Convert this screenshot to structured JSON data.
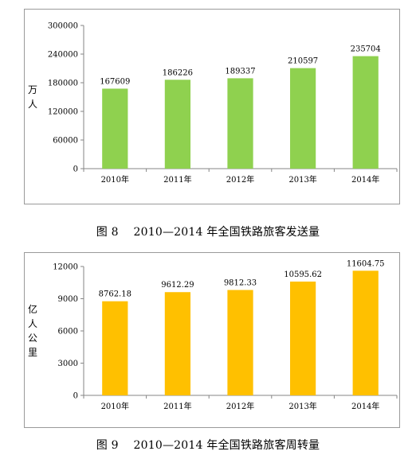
{
  "chart_data": [
    {
      "type": "bar",
      "categories": [
        "2010年",
        "2011年",
        "2012年",
        "2013年",
        "2014年"
      ],
      "values": [
        167609,
        186226,
        189337,
        210597,
        235704
      ],
      "data_labels": [
        "167609",
        "186226",
        "189337",
        "210597",
        "235704"
      ],
      "yticks": [
        0,
        60000,
        120000,
        180000,
        240000,
        300000
      ],
      "ytick_labels": [
        "0",
        "60000",
        "120000",
        "180000",
        "240000",
        "300000"
      ],
      "ylim": [
        0,
        300000
      ],
      "ylabel": [
        "万",
        "人"
      ],
      "grid": false,
      "legend": "none",
      "bar_color": "#8fd14f"
    },
    {
      "type": "bar",
      "categories": [
        "2010年",
        "2011年",
        "2012年",
        "2013年",
        "2014年"
      ],
      "values": [
        8762.18,
        9612.29,
        9812.33,
        10595.62,
        11604.75
      ],
      "data_labels": [
        "8762.18",
        "9612.29",
        "9812.33",
        "10595.62",
        "11604.75"
      ],
      "yticks": [
        0,
        3000,
        6000,
        9000,
        12000
      ],
      "ytick_labels": [
        "0",
        "3000",
        "6000",
        "9000",
        "12000"
      ],
      "ylim": [
        0,
        12000
      ],
      "ylabel": [
        "亿",
        "人",
        "公",
        "里"
      ],
      "grid": false,
      "legend": "none",
      "bar_color": "#ffc000"
    }
  ],
  "captions": {
    "fig8": "图 8　 2010—2014 年全国铁路旅客发送量",
    "fig9": "图 9　 2010—2014 年全国铁路旅客周转量"
  }
}
